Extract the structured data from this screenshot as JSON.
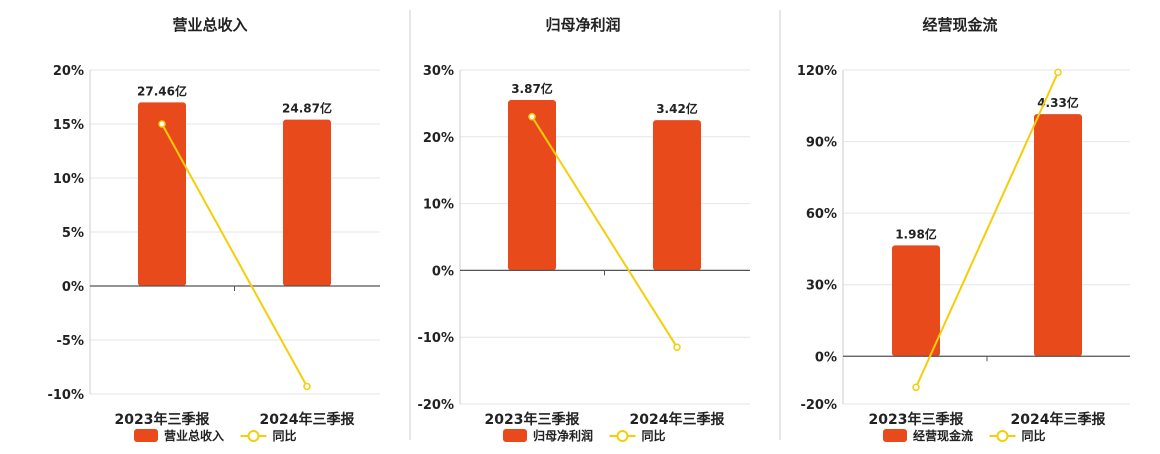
{
  "chart_data": [
    {
      "type": "bar",
      "title": "营业总收入",
      "categories": [
        "2023年三季报",
        "2024年三季报"
      ],
      "series": [
        {
          "name": "营业总收入",
          "type": "bar",
          "value_labels": [
            "27.46亿",
            "24.87亿"
          ],
          "values": [
            27.46,
            24.87
          ]
        },
        {
          "name": "同比",
          "type": "line",
          "values": [
            15,
            -9.3
          ]
        }
      ],
      "bar_heights_pct": [
        17.0,
        15.4
      ],
      "ylim": [
        -10,
        20
      ],
      "yticks": [
        "20%",
        "15%",
        "10%",
        "5%",
        "0%",
        "-5%",
        "-10%"
      ],
      "ytick_values": [
        20,
        15,
        10,
        5,
        0,
        -5,
        -10
      ],
      "grid": true,
      "legend": "bottom"
    },
    {
      "type": "bar",
      "title": "归母净利润",
      "categories": [
        "2023年三季报",
        "2024年三季报"
      ],
      "series": [
        {
          "name": "归母净利润",
          "type": "bar",
          "value_labels": [
            "3.87亿",
            "3.42亿"
          ],
          "values": [
            3.87,
            3.42
          ]
        },
        {
          "name": "同比",
          "type": "line",
          "values": [
            23,
            -11.5
          ]
        }
      ],
      "bar_heights_pct": [
        25.5,
        22.5
      ],
      "ylim": [
        -20,
        30
      ],
      "yticks": [
        "30%",
        "20%",
        "10%",
        "0%",
        "-10%",
        "-20%"
      ],
      "ytick_values": [
        30,
        20,
        10,
        0,
        -10,
        -20
      ],
      "grid": true,
      "legend": "bottom"
    },
    {
      "type": "bar",
      "title": "经营现金流",
      "categories": [
        "2023年三季报",
        "2024年三季报"
      ],
      "series": [
        {
          "name": "经营现金流",
          "type": "bar",
          "value_labels": [
            "1.98亿",
            "4.33亿"
          ],
          "values": [
            1.98,
            4.33
          ]
        },
        {
          "name": "同比",
          "type": "line",
          "values": [
            -13,
            119
          ]
        }
      ],
      "bar_heights_pct": [
        46.5,
        101.5
      ],
      "ylim": [
        -20,
        120
      ],
      "yticks": [
        "120%",
        "90%",
        "60%",
        "30%",
        "0%",
        "-20%"
      ],
      "ytick_values": [
        120,
        90,
        60,
        30,
        0,
        -20
      ],
      "grid": true,
      "legend": "bottom"
    }
  ],
  "colors": {
    "bar": "#E84A1C",
    "line": "#F5CE0A",
    "grid": "#e6e6e6",
    "axis": "#555555",
    "text": "#222222"
  }
}
